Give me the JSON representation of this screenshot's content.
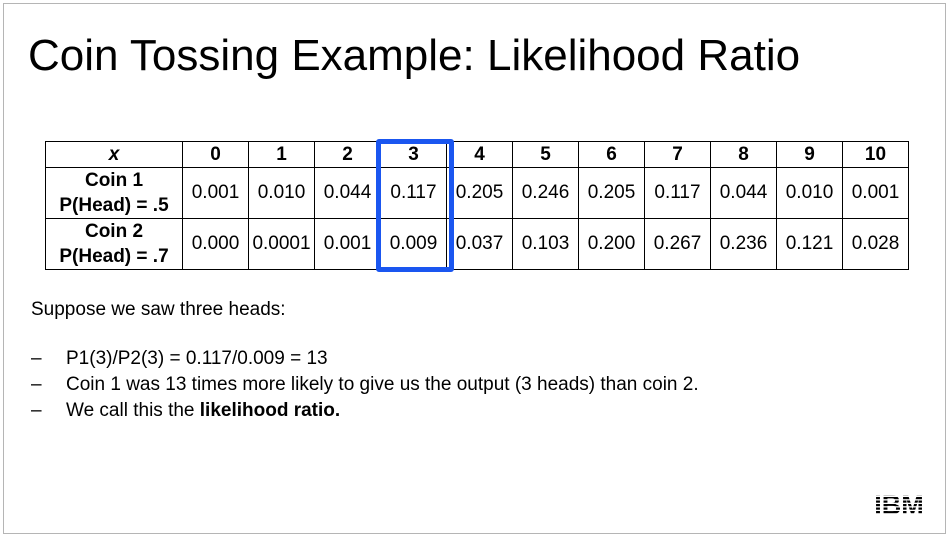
{
  "title": "Coin Tossing Example: Likelihood Ratio",
  "table": {
    "header_label": "x",
    "columns": [
      "0",
      "1",
      "2",
      "3",
      "4",
      "5",
      "6",
      "7",
      "8",
      "9",
      "10"
    ],
    "rows": [
      {
        "label_line1": "Coin 1",
        "label_line2": "P(Head) = .5",
        "values": [
          "0.001",
          "0.010",
          "0.044",
          "0.117",
          "0.205",
          "0.246",
          "0.205",
          "0.117",
          "0.044",
          "0.010",
          "0.001"
        ]
      },
      {
        "label_line1": "Coin 2",
        "label_line2": "P(Head) = .7",
        "values": [
          "0.000",
          "0.0001",
          "0.001",
          "0.009",
          "0.037",
          "0.103",
          "0.200",
          "0.267",
          "0.236",
          "0.121",
          "0.028"
        ]
      }
    ],
    "highlighted_column": "3",
    "highlight_color": "#1a56f0"
  },
  "intro": "Suppose we saw three heads:",
  "bullets": [
    {
      "dash": "–",
      "text": "P1(3)/P2(3) = 0.117/0.009 = 13",
      "bold": ""
    },
    {
      "dash": "–",
      "text": "Coin 1 was 13 times more likely to give us the output (3 heads) than coin 2.",
      "bold": ""
    },
    {
      "dash": "–",
      "text": "We call this the ",
      "bold": "likelihood ratio."
    }
  ],
  "logo": {
    "text": "IBM",
    "icon": "ibm-logo-icon"
  }
}
